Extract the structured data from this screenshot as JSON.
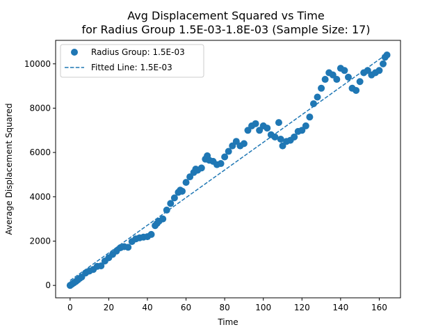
{
  "chart_data": {
    "type": "scatter",
    "title": "Avg Displacement Squared vs Time",
    "subtitle": "for Radius Group 1.5E-03-1.8E-03 (Sample Size: 17)",
    "xlabel": "Time",
    "ylabel": "Average Displacement Squared",
    "xlim": [
      -7.5,
      171
    ],
    "ylim": [
      -560,
      11060
    ],
    "xticks": [
      0,
      20,
      40,
      60,
      80,
      100,
      120,
      140,
      160
    ],
    "yticks": [
      0,
      2000,
      4000,
      6000,
      8000,
      10000
    ],
    "grid": false,
    "legend_position": "top-left",
    "color": "#1f77b4",
    "series": [
      {
        "name": "Radius Group: 1.5E-03",
        "kind": "scatter",
        "x": [
          0,
          1,
          2,
          3,
          4,
          5,
          6,
          8,
          10,
          12,
          14,
          16,
          18,
          20,
          22,
          24,
          26,
          28,
          30,
          32,
          34,
          36,
          38,
          40,
          42,
          44,
          45,
          46,
          48,
          50,
          52,
          54,
          56,
          57,
          58,
          60,
          62,
          64,
          65,
          66,
          68,
          70,
          71,
          72,
          74,
          76,
          78,
          80,
          82,
          84,
          86,
          88,
          90,
          92,
          94,
          96,
          98,
          100,
          102,
          104,
          106,
          108,
          109,
          110,
          112,
          114,
          116,
          118,
          120,
          122,
          124,
          126,
          128,
          130,
          132,
          134,
          136,
          138,
          140,
          142,
          144,
          146,
          148,
          150,
          152,
          154,
          156,
          158,
          160,
          162,
          163,
          164
        ],
        "y": [
          0,
          60,
          120,
          180,
          250,
          320,
          380,
          560,
          650,
          720,
          860,
          880,
          1100,
          1250,
          1400,
          1550,
          1700,
          1750,
          1720,
          1980,
          2100,
          2150,
          2180,
          2200,
          2300,
          2700,
          2800,
          2900,
          3000,
          3400,
          3700,
          3950,
          4200,
          4300,
          4250,
          4650,
          4900,
          5100,
          5250,
          5200,
          5300,
          5700,
          5850,
          5650,
          5600,
          5450,
          5500,
          5800,
          6050,
          6300,
          6500,
          6300,
          6400,
          7000,
          7200,
          7300,
          7000,
          7200,
          7100,
          6800,
          6700,
          7350,
          6600,
          6300,
          6500,
          6550,
          6700,
          6950,
          7000,
          7200,
          7600,
          8200,
          8500,
          8900,
          9300,
          9600,
          9500,
          9300,
          9800,
          9700,
          9400,
          8900,
          8800,
          9200,
          9600,
          9700,
          9500,
          9600,
          9700,
          10000,
          10300,
          10400
        ]
      },
      {
        "name": "Fitted Line: 1.5E-03",
        "kind": "line",
        "style": "dashed",
        "x": [
          0,
          164
        ],
        "y": [
          220,
          10450
        ]
      }
    ]
  }
}
